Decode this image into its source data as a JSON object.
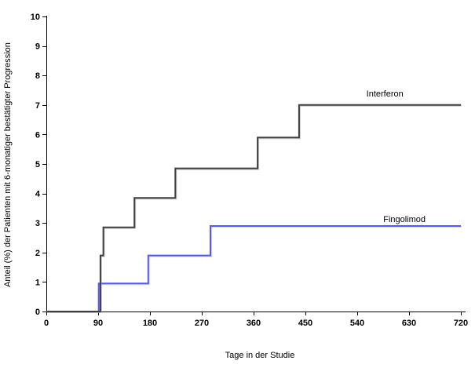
{
  "chart_data": {
    "type": "line",
    "subtype": "step",
    "title": "",
    "xlabel": "Tage in der Studie",
    "ylabel": "Anteil (%) der Patienten mit 6-monatiger bestätigter Progression",
    "xlim": [
      0,
      720
    ],
    "ylim": [
      0,
      10
    ],
    "x_ticks": [
      0,
      90,
      180,
      270,
      360,
      450,
      540,
      630,
      720
    ],
    "y_ticks": [
      0,
      1,
      2,
      3,
      4,
      5,
      6,
      7,
      8,
      9,
      10
    ],
    "grid": false,
    "legend": "inline-labels-on-chart",
    "axis_color": "#000000",
    "series": [
      {
        "name": "Fingolimod",
        "color": "#5a5ae8",
        "css_class": "fingolimod",
        "points": [
          [
            0,
            0
          ],
          [
            91,
            0
          ],
          [
            91,
            0.95
          ],
          [
            177,
            0.95
          ],
          [
            177,
            1.9
          ],
          [
            285,
            1.9
          ],
          [
            285,
            2.9
          ],
          [
            720,
            2.9
          ]
        ],
        "label": {
          "text": "Fingolimod",
          "x": 622,
          "y": 3.03
        }
      },
      {
        "name": "Interferon",
        "color": "#3f3f3f",
        "css_class": "interferon",
        "points": [
          [
            0,
            0
          ],
          [
            94,
            0
          ],
          [
            94,
            1.9
          ],
          [
            99,
            1.9
          ],
          [
            99,
            2.85
          ],
          [
            153,
            2.85
          ],
          [
            153,
            3.85
          ],
          [
            224,
            3.85
          ],
          [
            224,
            4.85
          ],
          [
            367,
            4.85
          ],
          [
            367,
            5.9
          ],
          [
            439,
            5.9
          ],
          [
            439,
            7.0
          ],
          [
            720,
            7.0
          ]
        ],
        "label": {
          "text": "Interferon",
          "x": 588,
          "y": 7.29
        }
      }
    ]
  }
}
